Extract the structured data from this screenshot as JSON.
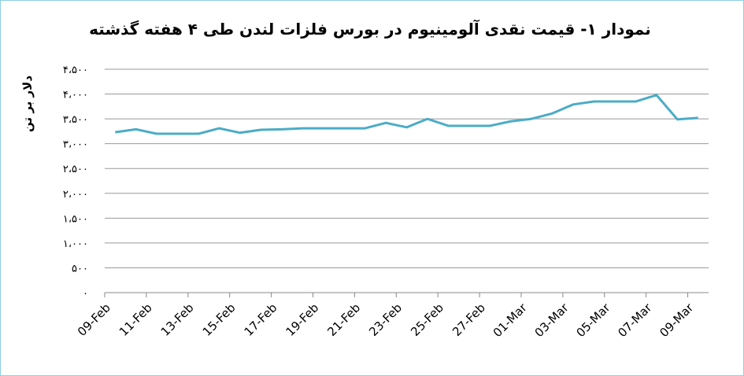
{
  "chart_data": {
    "type": "line",
    "title": "نمودار ۱- قیمت نقدی آلومینیوم در بورس فلزات لندن طی ۴ هفته گذشته",
    "y_label": "دلار بر تن",
    "categories": [
      "09-Feb",
      null,
      "11-Feb",
      null,
      "13-Feb",
      null,
      "15-Feb",
      null,
      "17-Feb",
      null,
      "19-Feb",
      null,
      "21-Feb",
      null,
      "23-Feb",
      null,
      "25-Feb",
      null,
      "27-Feb",
      null,
      "01-Mar",
      null,
      "03-Mar",
      null,
      "05-Mar",
      null,
      "07-Mar",
      null,
      "09-Mar"
    ],
    "series": [
      {
        "color": "#4bacc6",
        "values": [
          3230,
          3290,
          3200,
          3200,
          3200,
          3310,
          3220,
          3280,
          3290,
          3310,
          3310,
          3310,
          3310,
          3420,
          3330,
          3500,
          3360,
          3360,
          3360,
          3450,
          3500,
          3610,
          3790,
          3850,
          3850,
          3850,
          3980,
          3490,
          3520
        ]
      }
    ],
    "ylim": [
      0,
      4500
    ],
    "yticks": [
      {
        "value": 0,
        "label": "۰"
      },
      {
        "value": 500,
        "label": "۵۰۰"
      },
      {
        "value": 1000,
        "label": "۱،۰۰۰"
      },
      {
        "value": 1500,
        "label": "۱،۵۰۰"
      },
      {
        "value": 2000,
        "label": "۲،۰۰۰"
      },
      {
        "value": 2500,
        "label": "۲،۵۰۰"
      },
      {
        "value": 3000,
        "label": "۳،۰۰۰"
      },
      {
        "value": 3500,
        "label": "۳،۵۰۰"
      },
      {
        "value": 4000,
        "label": "۴،۰۰۰"
      },
      {
        "value": 4500,
        "label": "۴،۵۰۰"
      }
    ],
    "grid": true
  }
}
